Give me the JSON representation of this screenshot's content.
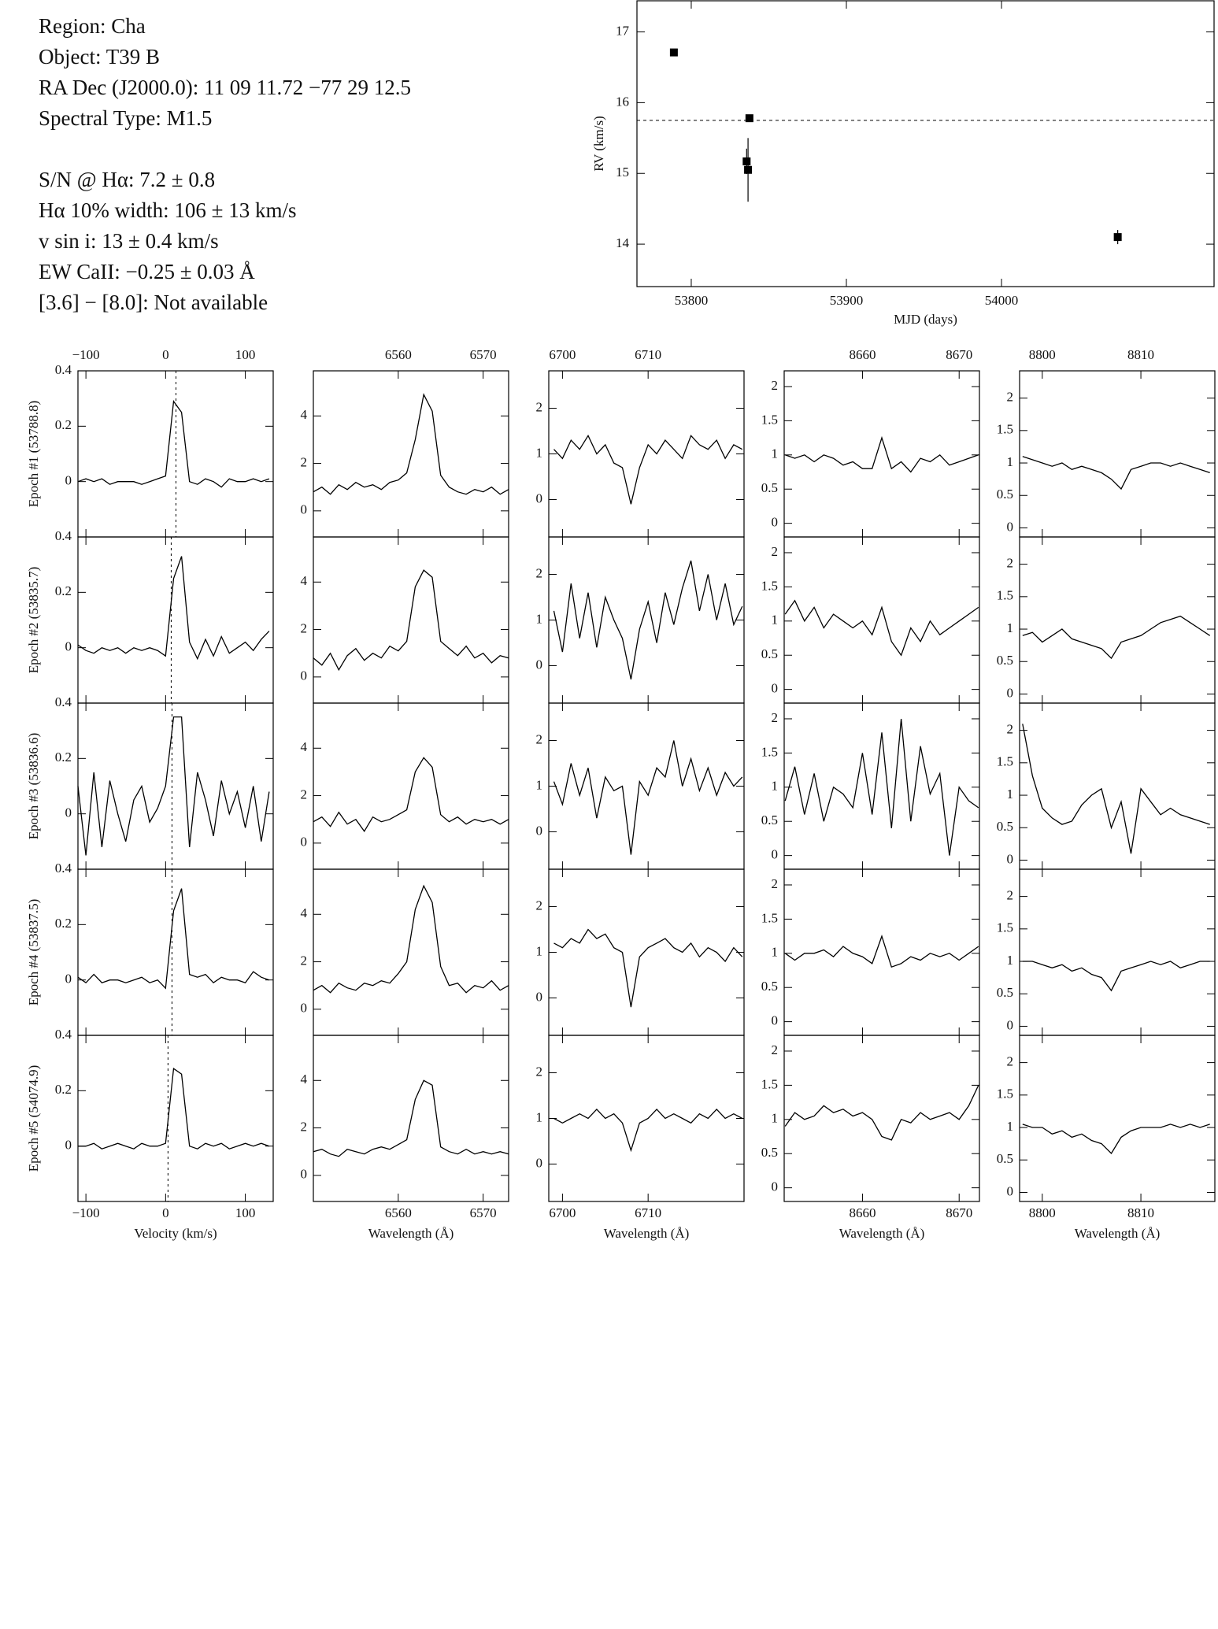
{
  "info": {
    "target": [
      "Region: Cha",
      "Object: T39 B",
      "RA Dec (J2000.0): 11 09 11.72 −77 29 12.5",
      "Spectral Type: M1.5"
    ],
    "measurements": [
      "S/N @ Hα: 7.2 ± 0.8",
      "Hα 10% width: 106 ± 13 km/s",
      "v sin i: 13 ± 0.4 km/s",
      "EW CaII: −0.25 ± 0.03 Å",
      "[3.6] − [8.0]: Not available"
    ]
  },
  "chart_data": [
    {
      "type": "scatter",
      "xlabel": "MJD (days)",
      "ylabel": "RV (km/s)",
      "color": "#000000",
      "x": [
        53788.8,
        53835.7,
        53836.6,
        53837.5,
        54074.9
      ],
      "series": [
        {
          "values": [
            16.71,
            15.17,
            15.05,
            15.78,
            14.1
          ],
          "errors": [
            0.05,
            0.18,
            0.45,
            0.05,
            0.1
          ]
        }
      ],
      "reference": 15.75,
      "xlim": [
        53765,
        54137
      ],
      "ylim": [
        13.4,
        17.44
      ],
      "xticks": [
        53800,
        53900,
        54000
      ],
      "yticks": [
        14,
        15,
        16,
        17
      ]
    },
    {
      "type": "line",
      "xlabel": "Velocity (km/s)",
      "xlim": [
        -110,
        135
      ],
      "ylim": [
        -0.2,
        0.4
      ],
      "xticks": [
        {
          "value": -100,
          "label": "−100"
        },
        0,
        100
      ],
      "yticks": [
        0,
        0.2,
        0.4
      ],
      "x": [
        -110,
        -100,
        -90,
        -80,
        -70,
        -60,
        -50,
        -40,
        -30,
        -20,
        -10,
        0,
        10,
        20,
        30,
        40,
        50,
        60,
        70,
        80,
        90,
        100,
        110,
        120,
        130
      ],
      "panels": [
        {
          "ylabel": "Epoch #1 (53788.8)",
          "vline": 13,
          "values": [
            0,
            0.01,
            0,
            0.01,
            -0.01,
            0,
            0,
            0,
            -0.01,
            0,
            0.01,
            0.02,
            0.29,
            0.25,
            0.0,
            -0.01,
            0.01,
            0,
            -0.02,
            0.01,
            0,
            0,
            0.01,
            0,
            0.01
          ]
        },
        {
          "ylabel": "Epoch #2 (53835.7)",
          "vline": 7,
          "values": [
            0.01,
            -0.01,
            -0.02,
            0,
            -0.01,
            0,
            -0.02,
            0,
            -0.01,
            0,
            -0.01,
            -0.03,
            0.25,
            0.33,
            0.02,
            -0.04,
            0.03,
            -0.03,
            0.04,
            -0.02,
            0,
            0.02,
            -0.01,
            0.03,
            0.06
          ]
        },
        {
          "ylabel": "Epoch #3 (53836.6)",
          "vline": 8,
          "values": [
            0.1,
            -0.15,
            0.15,
            -0.12,
            0.12,
            0,
            -0.1,
            0.05,
            0.1,
            -0.03,
            0.02,
            0.1,
            0.35,
            0.35,
            -0.12,
            0.15,
            0.05,
            -0.08,
            0.12,
            0,
            0.08,
            -0.05,
            0.1,
            -0.1,
            0.08
          ]
        },
        {
          "ylabel": "Epoch #4 (53837.5)",
          "vline": 8,
          "values": [
            0.01,
            -0.01,
            0.02,
            -0.01,
            0,
            0,
            -0.01,
            0,
            0.01,
            -0.01,
            0,
            -0.03,
            0.25,
            0.33,
            0.02,
            0.01,
            0.02,
            -0.01,
            0.01,
            0,
            0,
            -0.01,
            0.03,
            0.01,
            0
          ]
        },
        {
          "ylabel": "Epoch #5 (54074.9)",
          "vline": 3,
          "values": [
            0,
            0,
            0.01,
            -0.01,
            0,
            0.01,
            0,
            -0.01,
            0.01,
            0,
            0,
            0.01,
            0.28,
            0.26,
            0,
            -0.01,
            0.01,
            0,
            0.01,
            -0.01,
            0,
            0.01,
            0,
            0.01,
            0
          ]
        }
      ]
    },
    {
      "type": "line",
      "xlabel": "Wavelength (Å)",
      "xlim": [
        6550,
        6573
      ],
      "ylim": [
        -1.1,
        5.9
      ],
      "xticks": [
        6560,
        6570
      ],
      "yticks": [
        0,
        2,
        4
      ],
      "x": [
        6550,
        6551,
        6552,
        6553,
        6554,
        6555,
        6556,
        6557,
        6558,
        6559,
        6560,
        6561,
        6562,
        6563,
        6564,
        6565,
        6566,
        6567,
        6568,
        6569,
        6570,
        6571,
        6572,
        6573
      ],
      "panels": [
        {
          "values": [
            0.8,
            1.0,
            0.7,
            1.1,
            0.9,
            1.2,
            1.0,
            1.1,
            0.9,
            1.2,
            1.3,
            1.6,
            3.0,
            4.9,
            4.2,
            1.5,
            1.0,
            0.8,
            0.7,
            0.9,
            0.8,
            1.0,
            0.7,
            0.9
          ]
        },
        {
          "values": [
            0.8,
            0.5,
            1.0,
            0.3,
            0.9,
            1.2,
            0.7,
            1.0,
            0.8,
            1.3,
            1.1,
            1.5,
            3.8,
            4.5,
            4.2,
            1.5,
            1.2,
            0.9,
            1.3,
            0.8,
            1.0,
            0.6,
            0.9,
            0.8
          ]
        },
        {
          "values": [
            0.9,
            1.1,
            0.7,
            1.3,
            0.8,
            1.0,
            0.5,
            1.1,
            0.9,
            1.0,
            1.2,
            1.4,
            3.0,
            3.6,
            3.2,
            1.2,
            0.9,
            1.1,
            0.8,
            1.0,
            0.9,
            1.0,
            0.8,
            1.0
          ]
        },
        {
          "values": [
            0.8,
            1.0,
            0.7,
            1.1,
            0.9,
            0.8,
            1.1,
            1.0,
            1.2,
            1.1,
            1.5,
            2.0,
            4.2,
            5.2,
            4.5,
            1.8,
            1.0,
            1.1,
            0.7,
            1.0,
            0.9,
            1.2,
            0.8,
            1.0
          ]
        },
        {
          "values": [
            1.0,
            1.1,
            0.9,
            0.8,
            1.1,
            1.0,
            0.9,
            1.1,
            1.2,
            1.1,
            1.3,
            1.5,
            3.2,
            4.0,
            3.8,
            1.2,
            1.0,
            0.9,
            1.1,
            0.9,
            1.0,
            0.9,
            1.0,
            0.9
          ]
        }
      ]
    },
    {
      "type": "line",
      "xlabel": "Wavelength (Å)",
      "xlim": [
        6698.4,
        6721.2
      ],
      "ylim": [
        -0.82,
        2.82
      ],
      "xticks": [
        6700,
        6710
      ],
      "yticks": [
        0,
        1,
        2
      ],
      "x": [
        6699,
        6700,
        6701,
        6702,
        6703,
        6704,
        6705,
        6706,
        6707,
        6708,
        6709,
        6710,
        6711,
        6712,
        6713,
        6714,
        6715,
        6716,
        6717,
        6718,
        6719,
        6720,
        6721
      ],
      "panels": [
        {
          "values": [
            1.1,
            0.9,
            1.3,
            1.1,
            1.4,
            1.0,
            1.2,
            0.8,
            0.7,
            -0.1,
            0.7,
            1.2,
            1.0,
            1.3,
            1.1,
            0.9,
            1.4,
            1.2,
            1.1,
            1.3,
            0.9,
            1.2,
            1.1
          ]
        },
        {
          "values": [
            1.2,
            0.3,
            1.8,
            0.6,
            1.6,
            0.4,
            1.5,
            1.0,
            0.6,
            -0.3,
            0.8,
            1.4,
            0.5,
            1.6,
            0.9,
            1.7,
            2.3,
            1.2,
            2.0,
            1.0,
            1.8,
            0.9,
            1.3
          ]
        },
        {
          "values": [
            1.1,
            0.6,
            1.5,
            0.8,
            1.4,
            0.3,
            1.2,
            0.9,
            1.0,
            -0.5,
            1.1,
            0.8,
            1.4,
            1.2,
            2.0,
            1.0,
            1.6,
            0.9,
            1.4,
            0.8,
            1.3,
            1.0,
            1.2
          ]
        },
        {
          "values": [
            1.2,
            1.1,
            1.3,
            1.2,
            1.5,
            1.3,
            1.4,
            1.1,
            1.0,
            -0.2,
            0.9,
            1.1,
            1.2,
            1.3,
            1.1,
            1.0,
            1.2,
            0.9,
            1.1,
            1.0,
            0.8,
            1.1,
            0.9
          ]
        },
        {
          "values": [
            1.0,
            0.9,
            1.0,
            1.1,
            1.0,
            1.2,
            1.0,
            1.1,
            0.9,
            0.3,
            0.9,
            1.0,
            1.2,
            1.0,
            1.1,
            1.0,
            0.9,
            1.1,
            1.0,
            1.2,
            1.0,
            1.1,
            1.0
          ]
        }
      ]
    },
    {
      "type": "line",
      "xlabel": "Wavelength (Å)",
      "xlim": [
        8651.9,
        8672.1
      ],
      "ylim": [
        -0.2,
        2.23
      ],
      "xticks": [
        8660,
        8670
      ],
      "yticks": [
        0,
        0.5,
        1,
        1.5,
        2
      ],
      "x": [
        8652,
        8653,
        8654,
        8655,
        8656,
        8657,
        8658,
        8659,
        8660,
        8661,
        8662,
        8663,
        8664,
        8665,
        8666,
        8667,
        8668,
        8669,
        8670,
        8671,
        8672
      ],
      "panels": [
        {
          "values": [
            1.0,
            0.95,
            1.0,
            0.9,
            1.0,
            0.95,
            0.85,
            0.9,
            0.8,
            0.8,
            1.25,
            0.8,
            0.9,
            0.75,
            0.95,
            0.9,
            1.0,
            0.85,
            0.9,
            0.95,
            1.0
          ]
        },
        {
          "values": [
            1.1,
            1.3,
            1.0,
            1.2,
            0.9,
            1.1,
            1.0,
            0.9,
            1.0,
            0.8,
            1.2,
            0.7,
            0.5,
            0.9,
            0.7,
            1.0,
            0.8,
            0.9,
            1.0,
            1.1,
            1.2
          ]
        },
        {
          "values": [
            0.8,
            1.3,
            0.6,
            1.2,
            0.5,
            1.0,
            0.9,
            0.7,
            1.5,
            0.6,
            1.8,
            0.4,
            2.0,
            0.5,
            1.6,
            0.9,
            1.2,
            0.0,
            1.0,
            0.8,
            0.7
          ]
        },
        {
          "values": [
            1.0,
            0.9,
            1.0,
            1.0,
            1.05,
            0.95,
            1.1,
            1.0,
            0.95,
            0.85,
            1.25,
            0.8,
            0.85,
            0.95,
            0.9,
            1.0,
            0.95,
            1.0,
            0.9,
            1.0,
            1.1
          ]
        },
        {
          "values": [
            0.9,
            1.1,
            1.0,
            1.05,
            1.2,
            1.1,
            1.15,
            1.05,
            1.1,
            1.0,
            0.75,
            0.7,
            1.0,
            0.95,
            1.1,
            1.0,
            1.05,
            1.1,
            1.0,
            1.2,
            1.5
          ]
        }
      ]
    },
    {
      "type": "line",
      "xlabel": "Wavelength (Å)",
      "xlim": [
        8797.7,
        8817.5
      ],
      "ylim": [
        -0.14,
        2.42
      ],
      "xticks": [
        8800,
        8810
      ],
      "yticks": [
        0,
        0.5,
        1,
        1.5,
        2
      ],
      "x": [
        8798,
        8799,
        8800,
        8801,
        8802,
        8803,
        8804,
        8805,
        8806,
        8807,
        8808,
        8809,
        8810,
        8811,
        8812,
        8813,
        8814,
        8815,
        8816,
        8817
      ],
      "panels": [
        {
          "values": [
            1.1,
            1.05,
            1.0,
            0.95,
            1.0,
            0.9,
            0.95,
            0.9,
            0.85,
            0.75,
            0.6,
            0.9,
            0.95,
            1.0,
            1.0,
            0.95,
            1.0,
            0.95,
            0.9,
            0.85
          ]
        },
        {
          "values": [
            0.9,
            0.95,
            0.8,
            0.9,
            1.0,
            0.85,
            0.8,
            0.75,
            0.7,
            0.55,
            0.8,
            0.85,
            0.9,
            1.0,
            1.1,
            1.15,
            1.2,
            1.1,
            1.0,
            0.9
          ]
        },
        {
          "values": [
            2.1,
            1.3,
            0.8,
            0.65,
            0.55,
            0.6,
            0.85,
            1.0,
            1.1,
            0.5,
            0.9,
            0.1,
            1.1,
            0.9,
            0.7,
            0.8,
            0.7,
            0.65,
            0.6,
            0.55
          ]
        },
        {
          "values": [
            1.0,
            1.0,
            0.95,
            0.9,
            0.95,
            0.85,
            0.9,
            0.8,
            0.75,
            0.55,
            0.85,
            0.9,
            0.95,
            1.0,
            0.95,
            1.0,
            0.9,
            0.95,
            1.0,
            1.0
          ]
        },
        {
          "values": [
            1.05,
            1.0,
            1.0,
            0.9,
            0.95,
            0.85,
            0.9,
            0.8,
            0.75,
            0.6,
            0.85,
            0.95,
            1.0,
            1.0,
            1.0,
            1.05,
            1.0,
            1.05,
            1.0,
            1.05
          ]
        }
      ]
    }
  ]
}
